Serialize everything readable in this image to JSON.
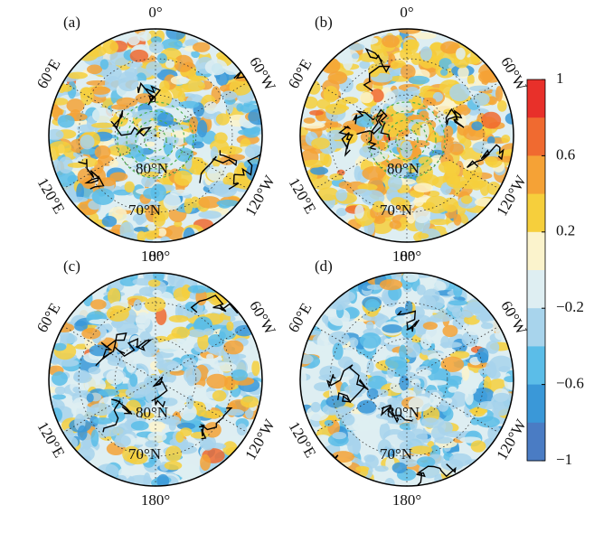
{
  "panels": [
    {
      "label": "(a)",
      "longitude_labels": [
        "0°",
        "60°W",
        "120°W",
        "180°",
        "120°E",
        "60°E"
      ],
      "latitude_labels": [
        "80°N",
        "70°N"
      ]
    },
    {
      "label": "(b)",
      "longitude_labels": [
        "0°",
        "60°W",
        "120°W",
        "180°",
        "120°E",
        "60°E"
      ],
      "latitude_labels": [
        "80°N",
        "70°N"
      ]
    },
    {
      "label": "(c)",
      "longitude_labels": [
        "0°",
        "60°W",
        "120°W",
        "180°",
        "120°E",
        "60°E"
      ],
      "latitude_labels": [
        "80°N",
        "70°N"
      ]
    },
    {
      "label": "(d)",
      "longitude_labels": [
        "0°",
        "60°W",
        "120°W",
        "180°",
        "120°E",
        "60°E"
      ],
      "latitude_labels": [
        "80°N",
        "70°N"
      ]
    }
  ],
  "colorbar": {
    "range": [
      -1,
      1
    ],
    "ticks": [
      1,
      0.6,
      0.2,
      {
        "value": -0.2,
        "label": "−0.2"
      },
      {
        "value": -0.6,
        "label": "−0.6"
      },
      {
        "value": -1,
        "label": "−1"
      }
    ],
    "colors": [
      "#e8302a",
      "#f06a30",
      "#f5a236",
      "#f6cf3c",
      "#fbf3cc",
      "#deeef2",
      "#a8d4ec",
      "#5bbde8",
      "#3a98d8",
      "#4a7cc4"
    ]
  }
}
